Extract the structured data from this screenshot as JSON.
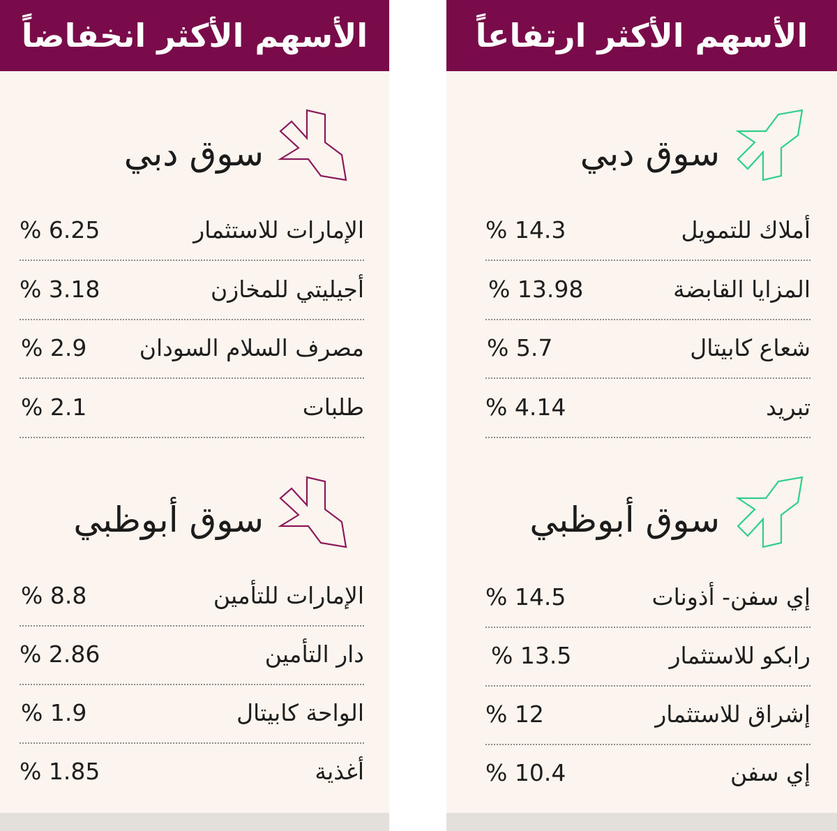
{
  "chart_data": [
    {
      "type": "table",
      "title": "الأسهم الأكثر ارتفاعاً",
      "markets": [
        {
          "name": "سوق دبي",
          "rows": [
            {
              "company": "أملاك للتمويل",
              "change": "% 14.3"
            },
            {
              "company": "المزايا القابضة",
              "change": "% 13.98"
            },
            {
              "company": "شعاع كابيتال",
              "change": "% 5.7"
            },
            {
              "company": "تبريد",
              "change": "% 4.14"
            }
          ]
        },
        {
          "name": "سوق أبوظبي",
          "rows": [
            {
              "company": "إي سفن- أذونات",
              "change": "% 14.5"
            },
            {
              "company": "رابكو للاستثمار",
              "change": "% 13.5"
            },
            {
              "company": "إشراق للاستثمار",
              "change": "% 12"
            },
            {
              "company": "إي سفن",
              "change": "% 10.4"
            }
          ]
        }
      ]
    },
    {
      "type": "table",
      "title": "الأسهم الأكثر انخفاضاً",
      "markets": [
        {
          "name": "سوق دبي",
          "rows": [
            {
              "company": "الإمارات للاستثمار",
              "change": "% 6.25"
            },
            {
              "company": "أجيليتي للمخازن",
              "change": "% 3.18"
            },
            {
              "company": "مصرف السلام السودان",
              "change": "% 2.9"
            },
            {
              "company": "طلبات",
              "change": "% 2.1"
            }
          ]
        },
        {
          "name": "سوق أبوظبي",
          "rows": [
            {
              "company": "الإمارات للتأمين",
              "change": "% 8.8"
            },
            {
              "company": "دار التأمين",
              "change": "% 2.86"
            },
            {
              "company": "الواحة كابيتال",
              "change": "% 1.9"
            },
            {
              "company": "أغذية",
              "change": "% 1.85"
            }
          ]
        }
      ]
    }
  ],
  "colors": {
    "header_bg": "#7a0b4a",
    "panel_bg": "#fcf4ee",
    "up_arrow": "#2fcf8a",
    "down_arrow": "#8b1a5c"
  },
  "icons": {
    "up": "arrow-up-right-icon",
    "down": "arrow-down-right-icon"
  }
}
